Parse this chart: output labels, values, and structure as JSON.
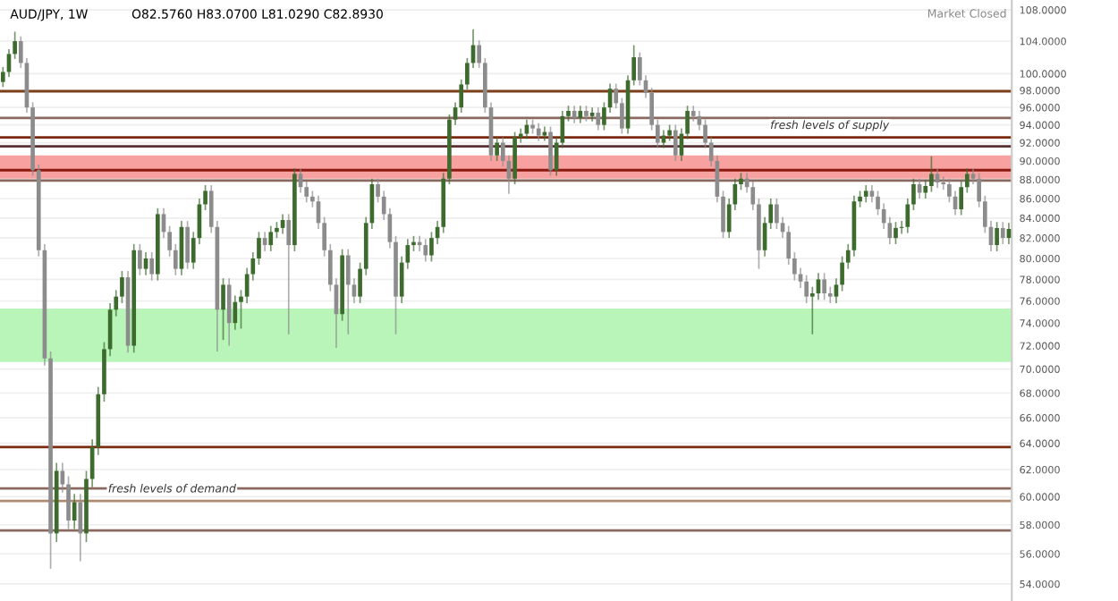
{
  "chart_data": {
    "type": "candlestick",
    "title": "AUD/JPY, 1W",
    "subtitle": "O82.5760 H83.0700 L81.0290 C82.8930",
    "annotations": [
      "Market Closed"
    ],
    "colors": [
      "#3d6b2e",
      "#3d6b2e",
      "#3d6b2e",
      "#8c8c8c",
      "#8c8c8c",
      "#8c8c8c",
      "#8c8c8c",
      "#8c8c8c",
      "#8c8c8c",
      "#3d6b2e",
      "#8c8c8c",
      "#8c8c8c",
      "#3d6b2e",
      "#8c8c8c",
      "#3d6b2e",
      "#3d6b2e",
      "#3d6b2e",
      "#3d6b2e",
      "#3d6b2e",
      "#3d6b2e",
      "#3d6b2e",
      "#8c8c8c",
      "#3d6b2e",
      "#8c8c8c",
      "#3d6b2e",
      "#8c8c8c",
      "#3d6b2e",
      "#8c8c8c",
      "#8c8c8c",
      "#8c8c8c",
      "#3d6b2e",
      "#8c8c8c",
      "#3d6b2e",
      "#3d6b2e",
      "#3d6b2e",
      "#8c8c8c",
      "#8c8c8c",
      "#3d6b2e",
      "#8c8c8c",
      "#3d6b2e",
      "#3d6b2e",
      "#3d6b2e",
      "#3d6b2e",
      "#3d6b2e",
      "#8c8c8c",
      "#3d6b2e",
      "#3d6b2e",
      "#3d6b2e",
      "#8c8c8c",
      "#3d6b2e",
      "#8c8c8c",
      "#8c8c8c",
      "#8c8c8c",
      "#8c8c8c",
      "#8c8c8c",
      "#8c8c8c",
      "#8c8c8c",
      "#3d6b2e",
      "#8c8c8c",
      "#8c8c8c",
      "#3d6b2e",
      "#3d6b2e",
      "#3d6b2e",
      "#8c8c8c",
      "#8c8c8c",
      "#8c8c8c",
      "#8c8c8c",
      "#3d6b2e",
      "#3d6b2e",
      "#3d6b2e",
      "#8c8c8c",
      "#8c8c8c",
      "#3d6b2e",
      "#3d6b2e",
      "#3d6b2e",
      "#3d6b2e",
      "#3d6b2e",
      "#3d6b2e",
      "#3d6b2e",
      "#3d6b2e",
      "#8c8c8c",
      "#8c8c8c",
      "#8c8c8c",
      "#3d6b2e",
      "#8c8c8c",
      "#8c8c8c",
      "#3d6b2e",
      "#3d6b2e",
      "#3d6b2e",
      "#8c8c8c",
      "#8c8c8c",
      "#3d6b2e",
      "#8c8c8c",
      "#3d6b2e",
      "#3d6b2e",
      "#3d6b2e",
      "#8c8c8c",
      "#3d6b2e",
      "#8c8c8c",
      "#3d6b2e",
      "#8c8c8c",
      "#3d6b2e",
      "#3d6b2e",
      "#8c8c8c",
      "#8c8c8c",
      "#3d6b2e",
      "#3d6b2e",
      "#8c8c8c",
      "#8c8c8c",
      "#8c8c8c",
      "#8c8c8c",
      "#3d6b2e",
      "#3d6b2e",
      "#8c8c8c",
      "#3d6b2e",
      "#3d6b2e",
      "#8c8c8c",
      "#8c8c8c",
      "#8c8c8c",
      "#8c8c8c",
      "#8c8c8c",
      "#8c8c8c",
      "#3d6b2e",
      "#3d6b2e",
      "#3d6b2e",
      "#8c8c8c",
      "#8c8c8c",
      "#8c8c8c",
      "#3d6b2e",
      "#3d6b2e",
      "#8c8c8c",
      "#8c8c8c",
      "#8c8c8c",
      "#8c8c8c",
      "#8c8c8c",
      "#8c8c8c",
      "#3d6b2e",
      "#3d6b2e",
      "#8c8c8c",
      "#8c8c8c",
      "#3d6b2e",
      "#3d6b2e",
      "#3d6b2e",
      "#3d6b2e",
      "#3d6b2e",
      "#3d6b2e",
      "#8c8c8c",
      "#8c8c8c",
      "#8c8c8c",
      "#8c8c8c",
      "#3d6b2e",
      "#3d6b2e",
      "#3d6b2e",
      "#3d6b2e",
      "#8c8c8c",
      "#3d6b2e",
      "#3d6b2e",
      "#8c8c8c",
      "#8c8c8c",
      "#8c8c8c",
      "#8c8c8c",
      "#3d6b2e",
      "#3d6b2e",
      "#8c8c8c",
      "#8c8c8c",
      "#8c8c8c",
      "#8c8c8c",
      "#3d6b2e",
      "#8c8c8c",
      "#3d6b2e"
    ],
    "categories": [
      null,
      null,
      null,
      null,
      null,
      null,
      null,
      null,
      null,
      null,
      null,
      null,
      null,
      null,
      null,
      null,
      null,
      null,
      null,
      null,
      null,
      null,
      null,
      null,
      null,
      null,
      null,
      null,
      null,
      null,
      null,
      null,
      null,
      null,
      null,
      null,
      null,
      null,
      null,
      null,
      null,
      null,
      null,
      null,
      null,
      null,
      null,
      null,
      null,
      null,
      null,
      null,
      null,
      null,
      null,
      null,
      null,
      null,
      null,
      null,
      null,
      null,
      null,
      null,
      null,
      null,
      null,
      null,
      null,
      null,
      null,
      null,
      null,
      null,
      null,
      null,
      null,
      null,
      null,
      null,
      null,
      null,
      null,
      null,
      null,
      null,
      null,
      null,
      null,
      null,
      null,
      null,
      null,
      null,
      null,
      null,
      null,
      null,
      null,
      null,
      null,
      null,
      null,
      null,
      null,
      null,
      null,
      null,
      null,
      null,
      null,
      null,
      null,
      null,
      null,
      null,
      null,
      null,
      null,
      null,
      null,
      null,
      null,
      null,
      null,
      null,
      null,
      null,
      null,
      null,
      null,
      null,
      null,
      null,
      null,
      null,
      null,
      null,
      null,
      null,
      null,
      null,
      null,
      null,
      null,
      null,
      null,
      null,
      null,
      null,
      null,
      null,
      null,
      null,
      null,
      null,
      null,
      null,
      null,
      null,
      null,
      null,
      null,
      null,
      null,
      null,
      null,
      null,
      null,
      null
    ],
    "ohlc": [
      [
        99.0,
        100.8,
        98.4,
        100.2
      ],
      [
        100.2,
        103.0,
        99.6,
        102.4
      ],
      [
        102.4,
        105.2,
        101.8,
        104.0
      ],
      [
        104.0,
        104.6,
        100.7,
        101.3
      ],
      [
        101.3,
        101.9,
        95.4,
        96.0
      ],
      [
        96.0,
        96.6,
        88.4,
        89.0
      ],
      [
        89.0,
        89.6,
        80.2,
        80.8
      ],
      [
        80.8,
        81.4,
        70.3,
        70.9
      ],
      [
        70.9,
        71.5,
        55.0,
        57.4
      ],
      [
        57.4,
        62.5,
        56.8,
        61.9
      ],
      [
        61.9,
        62.5,
        60.3,
        60.9
      ],
      [
        60.9,
        61.5,
        57.7,
        58.3
      ],
      [
        58.3,
        60.2,
        57.7,
        59.6
      ],
      [
        59.6,
        60.2,
        55.5,
        57.4
      ],
      [
        57.4,
        61.9,
        56.8,
        61.3
      ],
      [
        61.3,
        64.3,
        60.7,
        63.7
      ],
      [
        63.7,
        68.5,
        63.1,
        67.9
      ],
      [
        67.9,
        72.3,
        67.3,
        71.7
      ],
      [
        71.7,
        75.8,
        71.1,
        75.2
      ],
      [
        75.2,
        77.0,
        74.6,
        76.4
      ],
      [
        76.4,
        78.8,
        75.8,
        78.2
      ],
      [
        78.2,
        78.8,
        71.4,
        72.0
      ],
      [
        72.0,
        81.4,
        71.4,
        80.8
      ],
      [
        80.8,
        81.4,
        78.4,
        79.0
      ],
      [
        79.0,
        80.6,
        78.4,
        80.0
      ],
      [
        80.0,
        80.6,
        77.9,
        78.5
      ],
      [
        78.5,
        85.0,
        77.9,
        84.4
      ],
      [
        84.4,
        85.0,
        82.0,
        82.6
      ],
      [
        82.6,
        83.2,
        80.2,
        80.8
      ],
      [
        80.8,
        81.4,
        78.4,
        79.0
      ],
      [
        79.0,
        83.7,
        78.4,
        83.1
      ],
      [
        83.1,
        83.7,
        79.0,
        79.6
      ],
      [
        79.6,
        82.6,
        79.0,
        82.0
      ],
      [
        82.0,
        86.0,
        81.4,
        85.4
      ],
      [
        85.4,
        87.4,
        84.8,
        86.8
      ],
      [
        86.8,
        87.4,
        82.5,
        83.1
      ],
      [
        83.1,
        83.7,
        71.5,
        75.2
      ],
      [
        75.2,
        78.1,
        72.5,
        77.5
      ],
      [
        77.5,
        78.1,
        72.0,
        74.0
      ],
      [
        74.0,
        76.5,
        73.4,
        75.9
      ],
      [
        75.9,
        77.0,
        73.5,
        76.4
      ],
      [
        76.4,
        79.1,
        75.8,
        78.5
      ],
      [
        78.5,
        80.6,
        77.9,
        80.0
      ],
      [
        80.0,
        82.6,
        79.4,
        82.0
      ],
      [
        82.0,
        82.6,
        80.7,
        81.3
      ],
      [
        81.3,
        83.2,
        80.7,
        82.6
      ],
      [
        82.6,
        83.6,
        82.0,
        83.0
      ],
      [
        83.0,
        84.4,
        82.4,
        83.8
      ],
      [
        83.8,
        84.4,
        73.0,
        81.3
      ],
      [
        81.3,
        89.2,
        80.7,
        88.6
      ],
      [
        88.6,
        89.2,
        86.6,
        87.2
      ],
      [
        87.2,
        87.8,
        85.6,
        86.2
      ],
      [
        86.2,
        86.8,
        85.1,
        85.7
      ],
      [
        85.7,
        86.3,
        82.9,
        83.5
      ],
      [
        83.5,
        84.1,
        80.2,
        80.8
      ],
      [
        80.8,
        81.4,
        76.9,
        77.5
      ],
      [
        77.5,
        78.1,
        71.8,
        74.8
      ],
      [
        74.8,
        80.9,
        74.2,
        80.3
      ],
      [
        80.3,
        80.9,
        73.0,
        77.5
      ],
      [
        77.5,
        78.1,
        75.8,
        76.4
      ],
      [
        76.4,
        79.6,
        75.8,
        79.0
      ],
      [
        79.0,
        84.1,
        78.4,
        83.5
      ],
      [
        83.5,
        88.1,
        82.9,
        87.5
      ],
      [
        87.5,
        88.1,
        85.6,
        86.2
      ],
      [
        86.2,
        86.8,
        83.8,
        84.4
      ],
      [
        84.4,
        85.0,
        81.0,
        81.6
      ],
      [
        81.6,
        82.2,
        73.0,
        76.4
      ],
      [
        76.4,
        80.2,
        75.8,
        79.6
      ],
      [
        79.6,
        81.9,
        79.0,
        81.3
      ],
      [
        81.3,
        82.2,
        80.7,
        81.6
      ],
      [
        81.6,
        82.2,
        80.7,
        81.3
      ],
      [
        81.3,
        81.9,
        79.7,
        80.3
      ],
      [
        80.3,
        82.6,
        79.7,
        82.0
      ],
      [
        82.0,
        83.7,
        81.4,
        83.1
      ],
      [
        83.1,
        88.7,
        82.5,
        88.1
      ],
      [
        88.1,
        95.2,
        87.5,
        94.6
      ],
      [
        94.6,
        96.6,
        94.0,
        96.0
      ],
      [
        96.0,
        99.3,
        95.4,
        98.7
      ],
      [
        98.7,
        101.9,
        98.1,
        101.3
      ],
      [
        101.3,
        105.5,
        100.7,
        103.5
      ],
      [
        103.5,
        104.1,
        100.7,
        101.3
      ],
      [
        101.3,
        101.9,
        95.4,
        96.0
      ],
      [
        96.0,
        96.6,
        90.0,
        90.6
      ],
      [
        90.6,
        92.6,
        90.0,
        92.0
      ],
      [
        92.0,
        92.6,
        89.4,
        90.0
      ],
      [
        90.0,
        90.6,
        86.5,
        88.1
      ],
      [
        88.1,
        93.2,
        87.5,
        92.6
      ],
      [
        92.6,
        93.6,
        92.0,
        93.0
      ],
      [
        93.0,
        94.6,
        92.4,
        94.0
      ],
      [
        94.0,
        94.6,
        93.0,
        93.6
      ],
      [
        93.6,
        94.2,
        92.2,
        92.8
      ],
      [
        92.8,
        93.8,
        92.2,
        93.2
      ],
      [
        93.2,
        93.8,
        88.4,
        89.0
      ],
      [
        89.0,
        92.6,
        88.4,
        92.0
      ],
      [
        92.0,
        95.6,
        91.4,
        95.0
      ],
      [
        95.0,
        96.2,
        94.4,
        95.6
      ],
      [
        95.6,
        96.2,
        94.2,
        94.8
      ],
      [
        94.8,
        96.2,
        94.2,
        95.6
      ],
      [
        95.6,
        96.2,
        94.4,
        95.0
      ],
      [
        95.0,
        96.0,
        94.4,
        95.4
      ],
      [
        95.4,
        96.0,
        93.4,
        94.0
      ],
      [
        94.0,
        96.6,
        93.4,
        96.0
      ],
      [
        96.0,
        98.8,
        95.4,
        98.2
      ],
      [
        98.2,
        98.8,
        95.9,
        96.5
      ],
      [
        96.5,
        97.1,
        93.0,
        93.6
      ],
      [
        93.6,
        99.8,
        93.0,
        99.2
      ],
      [
        99.2,
        103.5,
        98.6,
        102.0
      ],
      [
        102.0,
        102.6,
        98.6,
        99.2
      ],
      [
        99.2,
        99.8,
        97.1,
        97.7
      ],
      [
        97.7,
        98.3,
        93.4,
        94.0
      ],
      [
        94.0,
        94.6,
        91.4,
        92.0
      ],
      [
        92.0,
        93.4,
        91.4,
        92.8
      ],
      [
        92.8,
        94.0,
        92.2,
        93.4
      ],
      [
        93.4,
        94.0,
        90.0,
        90.6
      ],
      [
        90.6,
        93.6,
        90.0,
        93.0
      ],
      [
        93.0,
        96.2,
        92.4,
        95.6
      ],
      [
        95.6,
        96.2,
        94.4,
        95.0
      ],
      [
        95.0,
        95.6,
        93.4,
        94.0
      ],
      [
        94.0,
        94.6,
        91.4,
        92.0
      ],
      [
        92.0,
        92.6,
        89.4,
        90.0
      ],
      [
        90.0,
        90.6,
        85.6,
        86.2
      ],
      [
        86.2,
        86.8,
        82.0,
        82.6
      ],
      [
        82.6,
        86.0,
        82.0,
        85.4
      ],
      [
        85.4,
        88.1,
        84.8,
        87.5
      ],
      [
        87.5,
        88.7,
        86.9,
        88.1
      ],
      [
        88.1,
        88.7,
        86.6,
        87.2
      ],
      [
        87.2,
        87.8,
        84.8,
        85.4
      ],
      [
        85.4,
        86.0,
        79.0,
        80.8
      ],
      [
        80.8,
        84.1,
        80.2,
        83.5
      ],
      [
        83.5,
        86.0,
        82.9,
        85.4
      ],
      [
        85.4,
        86.0,
        82.9,
        83.5
      ],
      [
        83.5,
        84.1,
        82.0,
        82.6
      ],
      [
        82.6,
        83.2,
        79.4,
        80.0
      ],
      [
        80.0,
        80.6,
        77.9,
        78.5
      ],
      [
        78.5,
        79.1,
        77.2,
        77.8
      ],
      [
        77.8,
        78.4,
        75.8,
        76.4
      ],
      [
        76.4,
        77.3,
        73.0,
        76.7
      ],
      [
        76.7,
        78.6,
        76.1,
        78.0
      ],
      [
        78.0,
        78.6,
        76.1,
        76.7
      ],
      [
        76.7,
        77.3,
        75.8,
        76.4
      ],
      [
        76.4,
        78.1,
        75.8,
        77.5
      ],
      [
        77.5,
        80.2,
        76.9,
        79.6
      ],
      [
        79.6,
        81.4,
        79.0,
        80.8
      ],
      [
        80.8,
        86.3,
        80.2,
        85.7
      ],
      [
        85.7,
        86.8,
        85.1,
        86.2
      ],
      [
        86.2,
        87.4,
        85.6,
        86.8
      ],
      [
        86.8,
        87.4,
        85.6,
        86.2
      ],
      [
        86.2,
        86.8,
        84.3,
        84.9
      ],
      [
        84.9,
        85.5,
        82.9,
        83.5
      ],
      [
        83.5,
        84.1,
        81.4,
        82.0
      ],
      [
        82.0,
        83.6,
        81.4,
        83.0
      ],
      [
        83.0,
        83.7,
        82.4,
        83.1
      ],
      [
        83.1,
        86.0,
        82.5,
        85.4
      ],
      [
        85.4,
        88.1,
        84.8,
        87.5
      ],
      [
        87.5,
        88.1,
        86.0,
        86.6
      ],
      [
        86.6,
        87.9,
        86.0,
        87.3
      ],
      [
        87.3,
        90.5,
        86.7,
        88.6
      ],
      [
        88.6,
        89.2,
        87.1,
        87.7
      ],
      [
        87.7,
        88.3,
        86.9,
        87.5
      ],
      [
        87.5,
        88.1,
        85.6,
        86.2
      ],
      [
        86.2,
        86.8,
        84.3,
        84.9
      ],
      [
        84.9,
        87.8,
        84.3,
        87.2
      ],
      [
        87.2,
        89.2,
        86.6,
        88.6
      ],
      [
        88.6,
        89.2,
        87.5,
        88.1
      ],
      [
        88.1,
        88.7,
        85.1,
        85.7
      ],
      [
        85.7,
        86.3,
        82.5,
        83.1
      ],
      [
        83.1,
        83.7,
        80.7,
        81.3
      ],
      [
        81.3,
        83.6,
        80.7,
        83.0
      ],
      [
        83.0,
        83.6,
        81.4,
        82.0
      ],
      [
        82.0,
        83.5,
        81.4,
        82.9
      ]
    ],
    "log": true,
    "ylim": [
      52.9,
      109.3
    ],
    "yticks": [
      {
        "value": 54,
        "label": "54.0000"
      },
      {
        "value": 56,
        "label": "56.0000"
      },
      {
        "value": 58,
        "label": "58.0000"
      },
      {
        "value": 60,
        "label": "60.0000"
      },
      {
        "value": 62,
        "label": "62.0000"
      },
      {
        "value": 64,
        "label": "64.0000"
      },
      {
        "value": 66,
        "label": "66.0000"
      },
      {
        "value": 68,
        "label": "68.0000"
      },
      {
        "value": 70,
        "label": "70.0000"
      },
      {
        "value": 72,
        "label": "72.0000"
      },
      {
        "value": 74,
        "label": "74.0000"
      },
      {
        "value": 76,
        "label": "76.0000"
      },
      {
        "value": 78,
        "label": "78.0000"
      },
      {
        "value": 80,
        "label": "80.0000"
      },
      {
        "value": 82,
        "label": "82.0000"
      },
      {
        "value": 84,
        "label": "84.0000"
      },
      {
        "value": 86,
        "label": "86.0000"
      },
      {
        "value": 88,
        "label": "88.0000"
      },
      {
        "value": 90,
        "label": "90.0000"
      },
      {
        "value": 92,
        "label": "92.0000"
      },
      {
        "value": 94,
        "label": "94.0000"
      },
      {
        "value": 96,
        "label": "96.0000"
      },
      {
        "value": 98,
        "label": "98.0000"
      },
      {
        "value": 100,
        "label": "100.0000"
      },
      {
        "value": 104,
        "label": "104.0000"
      },
      {
        "value": 108,
        "label": "108.0000"
      }
    ],
    "ref_lines": [
      {
        "axis": "y",
        "value": 97.9,
        "color": "#7b3f1a"
      },
      {
        "axis": "y",
        "value": 94.8,
        "color": "#8a6a60"
      },
      {
        "axis": "y",
        "value": 92.6,
        "color": "#7b2a10",
        "label": "fresh levels of supply"
      },
      {
        "axis": "y",
        "value": 91.6,
        "color": "#5a3030"
      },
      {
        "axis": "y",
        "value": 89.0,
        "color": "#8b1a10"
      },
      {
        "axis": "y",
        "value": 87.9,
        "color": "#8a6a60"
      },
      {
        "axis": "y",
        "value": 63.7,
        "color": "#7b2a10"
      },
      {
        "axis": "y",
        "value": 60.6,
        "color": "#8a6a60"
      },
      {
        "axis": "y",
        "value": 59.7,
        "color": "#b08a70",
        "label": "fresh levels of demand"
      },
      {
        "axis": "y",
        "value": 57.6,
        "color": "#8a6a60"
      }
    ],
    "bands": [
      {
        "axis": "y",
        "from": 70.6,
        "to": 75.3,
        "color": "#b9f5b9"
      },
      {
        "axis": "y",
        "from": 88.1,
        "to": 90.6,
        "color": "#f7a1a1"
      }
    ],
    "grid": "y",
    "legend": false
  }
}
